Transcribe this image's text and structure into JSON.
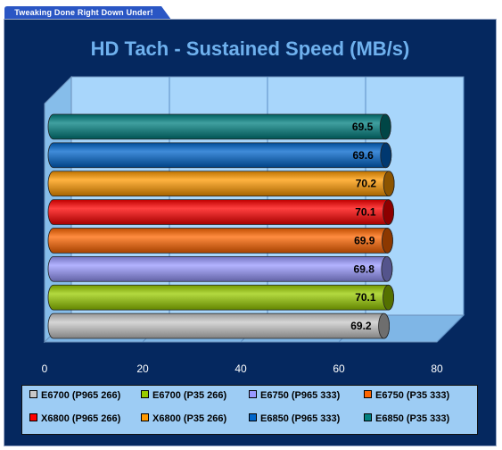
{
  "banner": "Tweaking Done Right Down Under!",
  "chart_data": {
    "type": "bar",
    "orientation": "horizontal",
    "title": "HD Tach - Sustained Speed (MB/s)",
    "xlim": [
      0,
      80
    ],
    "xticks": [
      0,
      20,
      40,
      60,
      80
    ],
    "grid": true,
    "legend_position": "bottom",
    "series": [
      {
        "name": "E6700 (P965 266)",
        "value": 69.2,
        "label": "69.2",
        "color": "#c8c8c8"
      },
      {
        "name": "E6700 (P35 266)",
        "value": 70.1,
        "label": "70.1",
        "color": "#99cc00"
      },
      {
        "name": "E6750 (P965 333)",
        "value": 69.8,
        "label": "69.8",
        "color": "#9999ff"
      },
      {
        "name": "E6750 (P35 333)",
        "value": 69.9,
        "label": "69.9",
        "color": "#ff6600"
      },
      {
        "name": "X6800 (P965 266)",
        "value": 70.1,
        "label": "70.1",
        "color": "#ff0000"
      },
      {
        "name": "X6800 (P35 266)",
        "value": 70.2,
        "label": "70.2",
        "color": "#ff9900"
      },
      {
        "name": "E6850 (P965 333)",
        "value": 69.6,
        "label": "69.6",
        "color": "#0066cc"
      },
      {
        "name": "E6850 (P35 333)",
        "value": 69.5,
        "label": "69.5",
        "color": "#008080"
      }
    ]
  }
}
